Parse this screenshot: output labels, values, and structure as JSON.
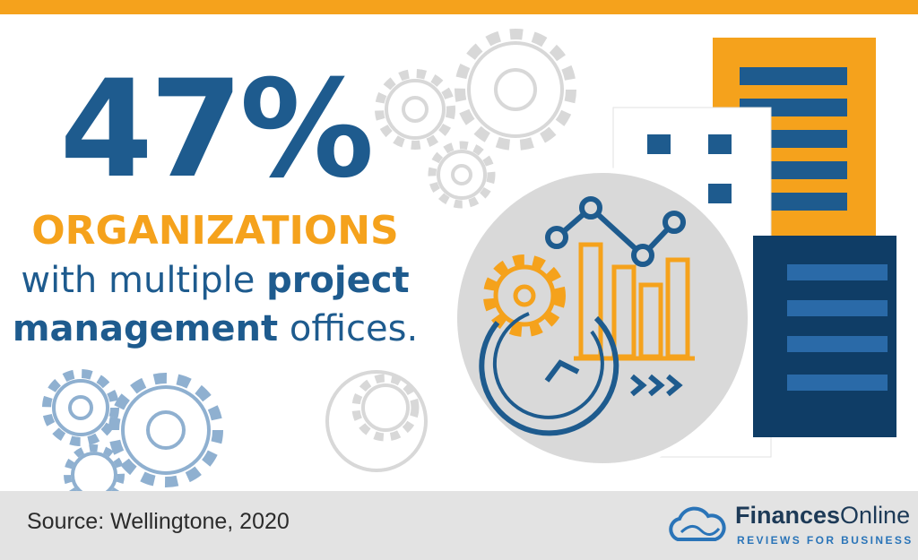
{
  "stat": {
    "value": "47%",
    "label": "ORGANIZATIONS",
    "line1_regular": "with multiple",
    "line1_bold": "project",
    "line2_bold": "management",
    "line2_regular": "offices."
  },
  "footer": {
    "source": "Source: Wellingtone, 2020",
    "brand_bold": "Finances",
    "brand_regular": "Online",
    "tagline": "REVIEWS FOR BUSINESS"
  }
}
